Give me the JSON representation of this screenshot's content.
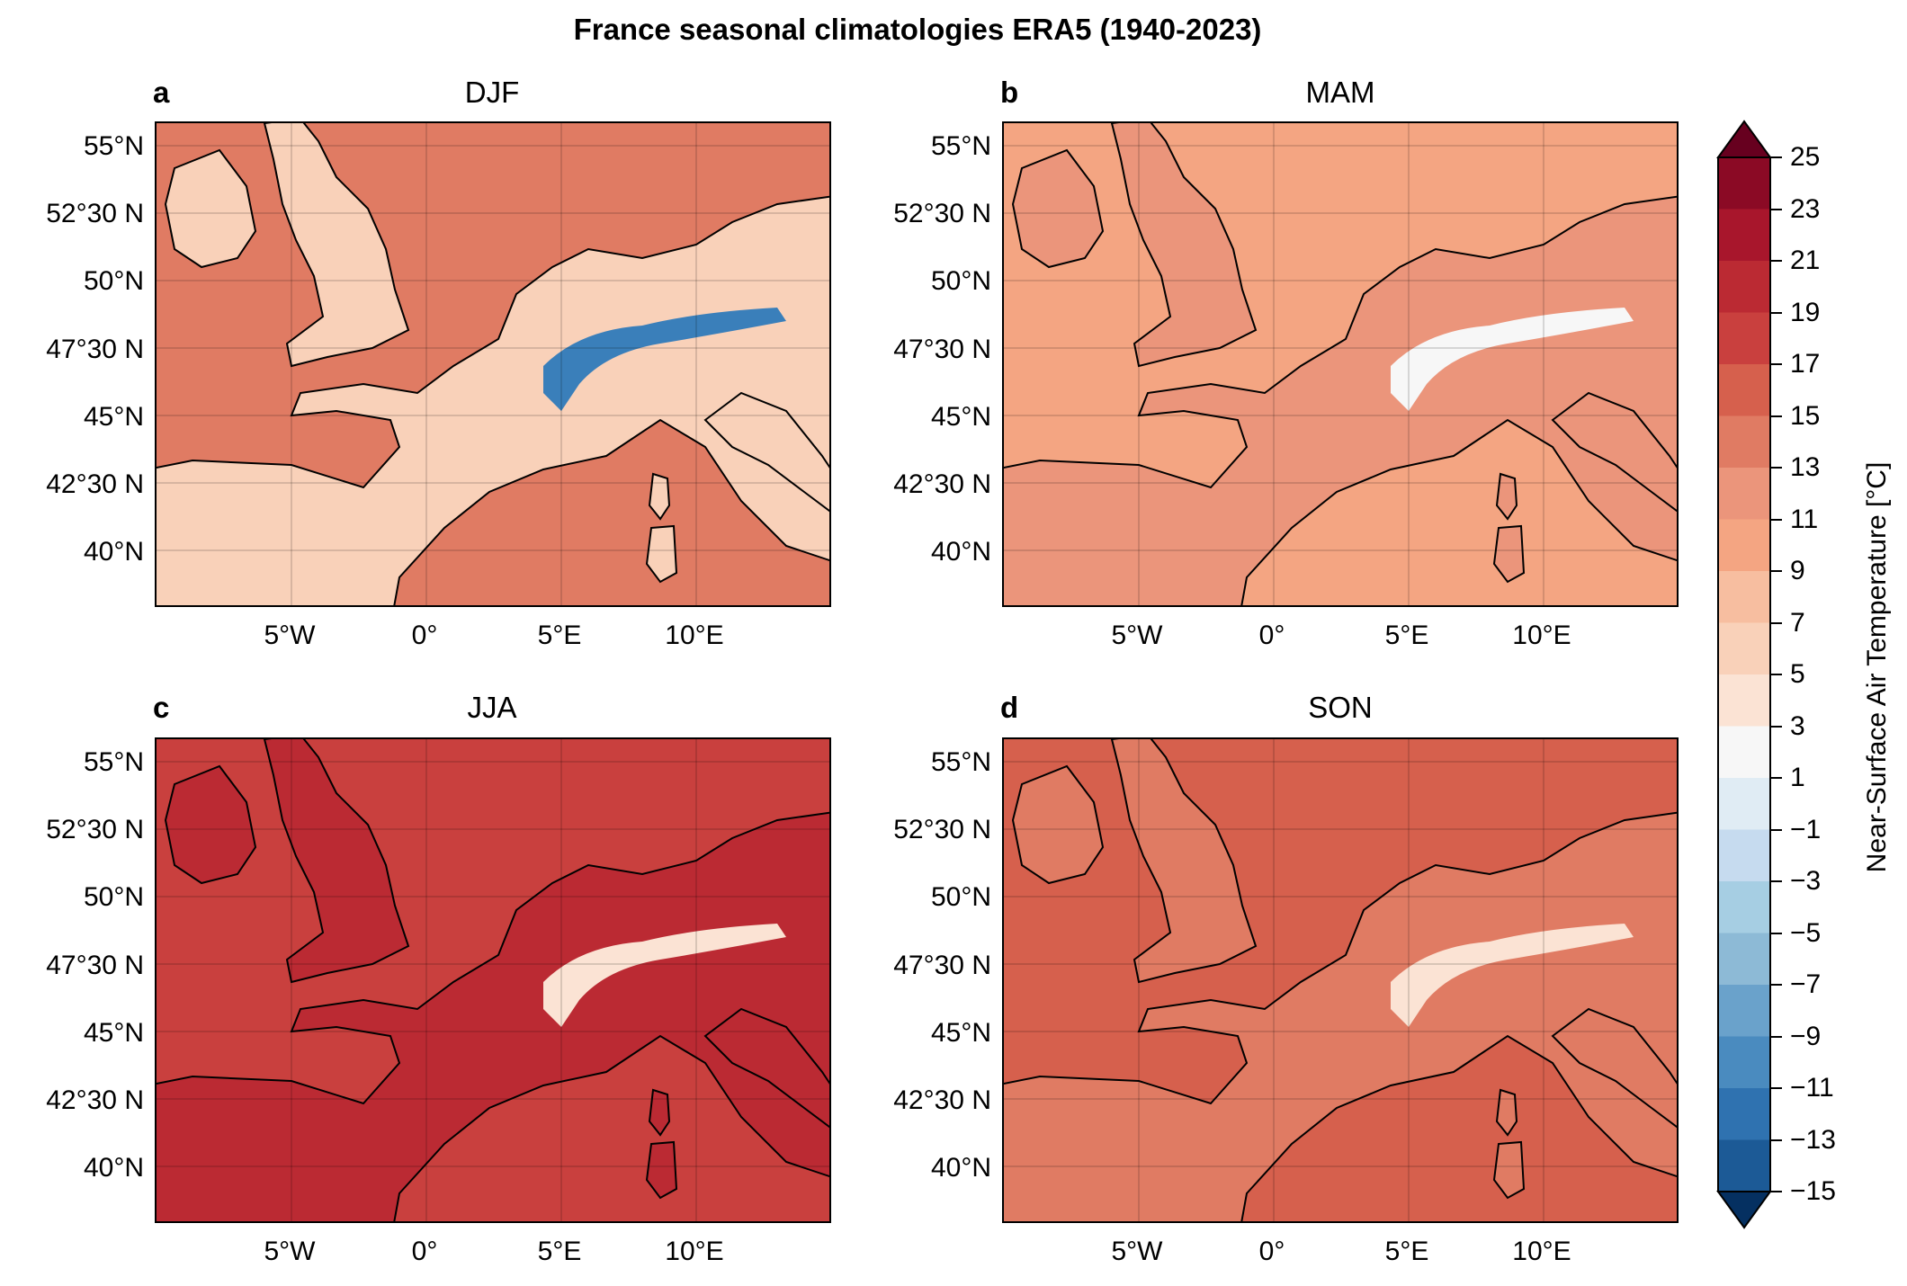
{
  "figure": {
    "title": "France seasonal climatologies ERA5 (1940-2023)"
  },
  "panels": [
    {
      "letter": "a",
      "title": "DJF"
    },
    {
      "letter": "b",
      "title": "MAM"
    },
    {
      "letter": "c",
      "title": "JJA"
    },
    {
      "letter": "d",
      "title": "SON"
    }
  ],
  "axes": {
    "lat_labels": [
      "55°N",
      "52°30 N",
      "50°N",
      "47°30 N",
      "45°N",
      "42°30 N",
      "40°N"
    ],
    "lon_labels": [
      "5°W",
      "0°",
      "5°E",
      "10°E"
    ]
  },
  "colorbar": {
    "label": "Near-Surface Air Temperature [°C]",
    "ticks": [
      "25",
      "23",
      "21",
      "19",
      "17",
      "15",
      "13",
      "11",
      "9",
      "7",
      "5",
      "3",
      "1",
      "−1",
      "−3",
      "−5",
      "−7",
      "−9",
      "−11",
      "−13",
      "−15"
    ],
    "colors": [
      "#67001f",
      "#8b0a25",
      "#a8162c",
      "#bb2a33",
      "#c9403e",
      "#d6604d",
      "#e07b63",
      "#eb957b",
      "#f4a582",
      "#f7bea0",
      "#f9d1b9",
      "#fbe3d4",
      "#f7f7f7",
      "#e0ecf4",
      "#c6dbef",
      "#a6cee3",
      "#8dbad6",
      "#6aa2cb",
      "#4a8bbf",
      "#2f72b0",
      "#1c5a96",
      "#053061"
    ]
  },
  "map_style": {
    "land_colors": {
      "DJF": "#f9d1b9",
      "MAM": "#eb957b",
      "JJA": "#bb2a33",
      "SON": "#e07b63"
    },
    "sea_colors": {
      "DJF": "#e07b63",
      "MAM": "#f4a582",
      "JJA": "#c9403e",
      "SON": "#d6604d"
    }
  }
}
